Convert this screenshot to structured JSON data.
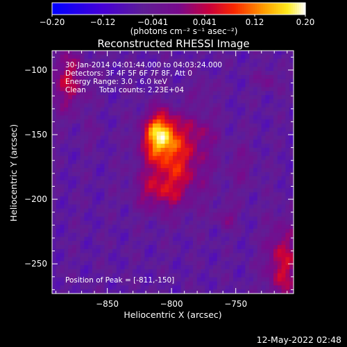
{
  "chart_data": {
    "type": "heatmap",
    "title": "Reconstructed RHESSI Image",
    "xlabel": "Heliocentric X (arcsec)",
    "ylabel": "Heliocentric Y (arcsec)",
    "xlim": [
      -893,
      -705
    ],
    "ylim": [
      -273,
      -85
    ],
    "x_ticks": [
      -850,
      -800,
      -750
    ],
    "x_tick_labels": [
      "−850",
      "−800",
      "−750"
    ],
    "y_ticks": [
      -100,
      -150,
      -200,
      -250
    ],
    "y_tick_labels": [
      "−100",
      "−150",
      "−200",
      "−250"
    ],
    "colorbar": {
      "min": -0.2,
      "max": 0.2,
      "ticks": [
        -0.2,
        -0.12,
        -0.041,
        0.041,
        0.12,
        0.2
      ],
      "tick_labels": [
        "−0.20",
        "−0.12",
        "−0.041",
        "0.041",
        "0.12",
        "0.20"
      ],
      "units_label": "(photons cm⁻² s⁻¹ asec⁻²)",
      "colormap": "blue-purple-red-yellow-white"
    },
    "sources": [
      {
        "x": -809,
        "y": -150,
        "sx": 9,
        "sy": 12,
        "amp": 0.19
      },
      {
        "x": -797,
        "y": -172,
        "sx": 17,
        "sy": 22,
        "amp": 0.12
      },
      {
        "x": -812,
        "y": -195,
        "sx": 12,
        "sy": 10,
        "amp": 0.06
      },
      {
        "x": -777,
        "y": -147,
        "sx": 9,
        "sy": 11,
        "amp": 0.045
      },
      {
        "x": -880,
        "y": -108,
        "sx": 10,
        "sy": 17,
        "amp": 0.095
      },
      {
        "x": -714,
        "y": -250,
        "sx": 9,
        "sy": 22,
        "amp": 0.11
      },
      {
        "x": -775,
        "y": -115,
        "sx": 6,
        "sy": 5,
        "amp": 0.04
      },
      {
        "x": -745,
        "y": -175,
        "sx": 8,
        "sy": 14,
        "amp": 0.035
      },
      {
        "x": -757,
        "y": -214,
        "sx": 6,
        "sy": 6,
        "amp": 0.055
      },
      {
        "x": -725,
        "y": -108,
        "sx": 6,
        "sy": 6,
        "amp": 0.05
      },
      {
        "x": -862,
        "y": -150,
        "sx": 6,
        "sy": 6,
        "amp": 0.025
      }
    ],
    "background_level": -0.06,
    "peak": {
      "x": -811,
      "y": -150
    }
  },
  "annotations": {
    "time_range": "30-Jan-2014 04:01:44.000 to 04:03:24.000",
    "detectors": "Detectors: 3F 4F 5F 6F 7F 8F, Att 0",
    "energy_range": "Energy Range: 3.0 - 6.0 keV",
    "clean_label": "Clean",
    "total_counts": "Total counts: 2.23E+04",
    "peak_position": "Position of Peak = [-811,-150]"
  },
  "footer": {
    "date": "12-May-2022 02:48"
  }
}
